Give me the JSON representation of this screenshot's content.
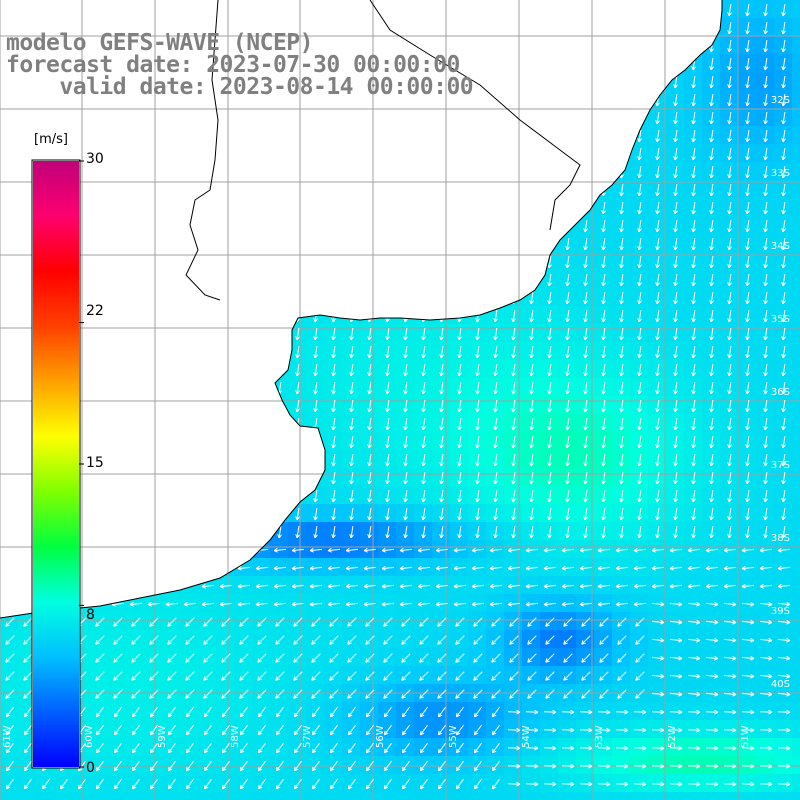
{
  "titles": {
    "line1": "modelo GEFS-WAVE (NCEP)",
    "line2": "forecast date: 2023-07-30 00:00:00",
    "line3": "    valid date: 2023-08-14 00:00:00"
  },
  "colorbar": {
    "units": "[m/s]",
    "ticks": [
      "30",
      "22",
      "15",
      "8",
      "0"
    ],
    "tick_values": [
      30,
      22,
      15,
      8,
      0
    ],
    "range": [
      0,
      30
    ],
    "colors": [
      "#0000ff",
      "#0060ff",
      "#00c0ff",
      "#00ffe0",
      "#00ff40",
      "#80ff00",
      "#ffff00",
      "#ffa000",
      "#ff4000",
      "#ff0000",
      "#ff0070",
      "#c0007a"
    ]
  },
  "map_labels": {
    "lat": [
      "32S",
      "33S",
      "34S",
      "35S",
      "36S",
      "37S",
      "38S",
      "39S",
      "40S"
    ],
    "lon": [
      "61W",
      "60W",
      "59W",
      "58W",
      "57W",
      "56W",
      "55W",
      "54W",
      "53W",
      "52W",
      "51W"
    ]
  },
  "colors": {
    "land": "#ffffff",
    "grid": "#a0a0a0",
    "coast": "#000000",
    "arrow": "#ffffff",
    "title": "#808080"
  }
}
